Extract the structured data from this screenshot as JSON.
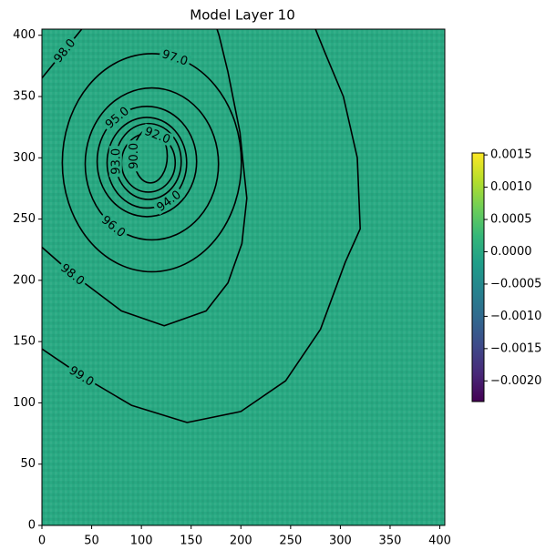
{
  "chart_data": {
    "type": "contour",
    "title": "Model Layer 10",
    "xlim": [
      0,
      405
    ],
    "ylim": [
      0,
      405
    ],
    "xticks": [
      0,
      50,
      100,
      150,
      200,
      250,
      300,
      350,
      400
    ],
    "yticks": [
      0,
      50,
      100,
      150,
      200,
      250,
      300,
      350,
      400
    ],
    "colormap": "viridis",
    "field_value": 0,
    "clim": [
      -0.00232,
      0.00153
    ],
    "cticks": [
      {
        "value": 0.0015,
        "label": "0.0015"
      },
      {
        "value": 0.001,
        "label": "0.0010"
      },
      {
        "value": 0.0005,
        "label": "0.0005"
      },
      {
        "value": 0,
        "label": "0.0000"
      },
      {
        "value": -0.0005,
        "label": "−0.0005"
      },
      {
        "value": -0.001,
        "label": "−0.0010"
      },
      {
        "value": -0.0015,
        "label": "−0.0015"
      },
      {
        "value": -0.002,
        "label": "−0.0020"
      }
    ],
    "line_color": "#000000",
    "contours": [
      {
        "level": {
          "value": 99,
          "label": "99.0"
        },
        "x": [
          0,
          40,
          90,
          146,
          200,
          245,
          280,
          305,
          320,
          317,
          303,
          285,
          275
        ],
        "y": [
          144,
          122,
          98,
          84,
          93,
          118,
          160,
          215,
          242,
          300,
          350,
          385,
          405
        ]
      },
      {
        "level": {
          "value": 98,
          "label": "98.0"
        },
        "x": [
          0,
          31,
          80,
          123,
          165,
          187,
          201,
          206,
          199,
          187,
          178,
          176
        ],
        "y": [
          227,
          205,
          175,
          163,
          175,
          198,
          230,
          267,
          321,
          370,
          400,
          405
        ]
      },
      {
        "level": {
          "value": 98,
          "label": "98.0"
        },
        "x": [
          0,
          15,
          30,
          40
        ],
        "y": [
          365,
          380,
          395,
          405
        ]
      },
      {
        "level": {
          "value": 97,
          "label": "97.0"
        },
        "cx": 110.5,
        "cy": 296,
        "rx": 90,
        "ry": 89
      },
      {
        "level": {
          "value": 96,
          "label": "96.0"
        },
        "cx": 110.5,
        "cy": 295,
        "rx": 67,
        "ry": 62
      },
      {
        "level": {
          "value": 95,
          "label": "95.0"
        },
        "cx": 105.5,
        "cy": 297,
        "rx": 50,
        "ry": 45
      },
      {
        "level": {
          "value": 94,
          "label": "94.0"
        },
        "cx": 105.5,
        "cy": 296,
        "rx": 40,
        "ry": 37
      },
      {
        "level": {
          "value": 93,
          "label": "93.0"
        },
        "cx": 107,
        "cy": 297,
        "rx": 33,
        "ry": 31
      },
      {
        "level": {
          "value": 92,
          "label": "92.0"
        },
        "cx": 107,
        "cy": 296,
        "rx": 27,
        "ry": 24
      },
      {
        "level": {
          "value": 90,
          "label": "90.0"
        },
        "cx": 109,
        "cy": 301.5,
        "rx": 17,
        "ry": 22
      }
    ]
  }
}
